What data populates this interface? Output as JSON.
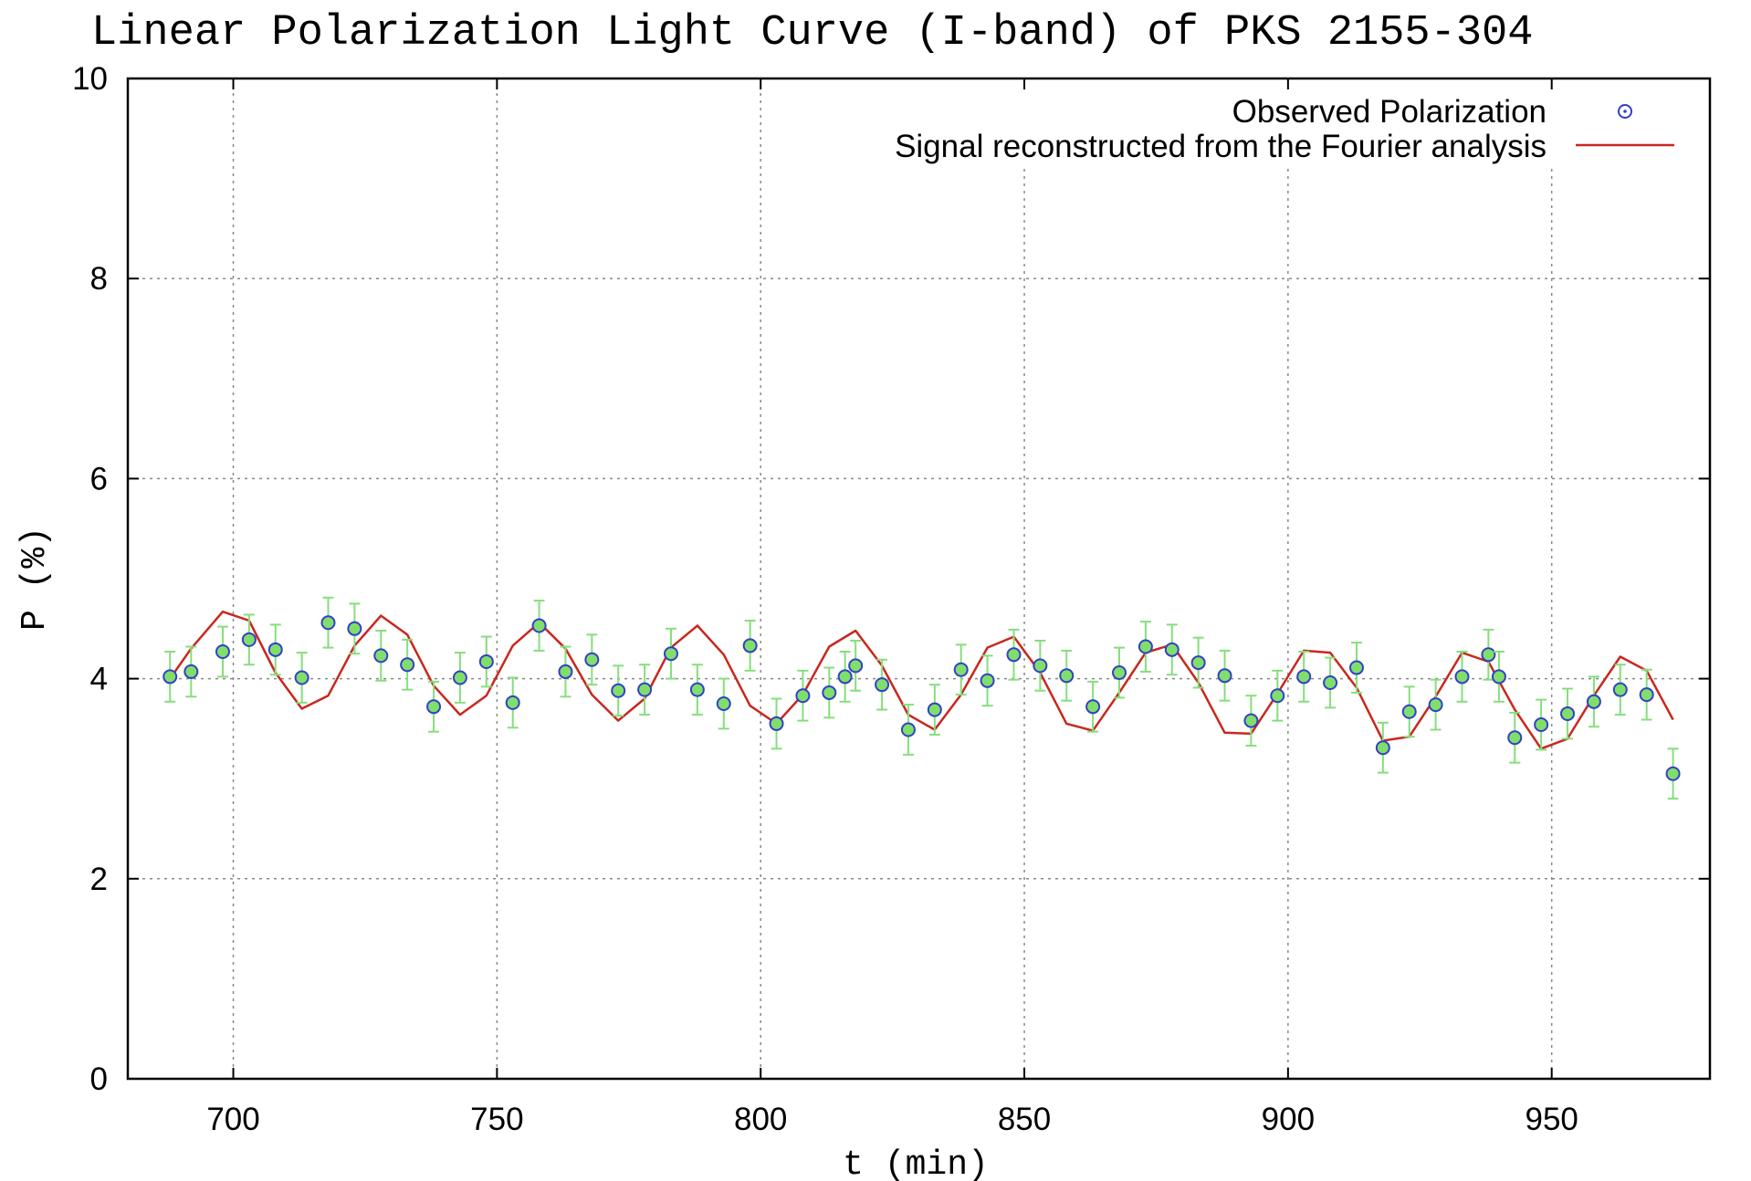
{
  "chart_data": {
    "type": "scatter",
    "title": "Linear Polarization Light Curve (I-band) of PKS 2155-304",
    "xlabel": "t (min)",
    "ylabel": "P (%)",
    "xlim": [
      680,
      980
    ],
    "ylim": [
      0,
      10
    ],
    "x_ticks": [
      700,
      750,
      800,
      850,
      900,
      950
    ],
    "y_ticks": [
      0,
      2,
      4,
      6,
      8,
      10
    ],
    "grid": true,
    "legend_position": "top-right",
    "colors": {
      "observed_marker": "#3340c8",
      "observed_fill": "#7fdf6a",
      "error_bar": "#86de7c",
      "reconstructed_line": "#c8281e",
      "grid": "#888888",
      "axes": "#000000"
    },
    "series": [
      {
        "name": "Observed Polarization",
        "type": "scatter",
        "x": [
          688,
          692,
          698,
          703,
          708,
          713,
          718,
          723,
          728,
          733,
          738,
          743,
          748,
          753,
          758,
          763,
          768,
          773,
          778,
          783,
          788,
          793,
          798,
          803,
          808,
          813,
          816,
          818,
          823,
          828,
          833,
          838,
          843,
          848,
          853,
          858,
          863,
          868,
          873,
          878,
          883,
          888,
          893,
          898,
          903,
          908,
          913,
          918,
          923,
          928,
          933,
          938,
          940,
          943,
          948,
          953,
          958,
          963,
          968,
          973
        ],
        "y": [
          4.02,
          4.07,
          4.27,
          4.39,
          4.29,
          4.01,
          4.56,
          4.5,
          4.23,
          4.14,
          3.72,
          4.01,
          4.17,
          3.76,
          4.53,
          4.07,
          4.19,
          3.88,
          3.89,
          4.25,
          3.89,
          3.75,
          4.33,
          3.55,
          3.83,
          3.86,
          4.02,
          4.13,
          3.94,
          3.49,
          3.69,
          4.09,
          3.98,
          4.24,
          4.13,
          4.03,
          3.72,
          4.06,
          4.32,
          4.29,
          4.16,
          4.03,
          3.58,
          3.83,
          4.02,
          3.96,
          4.11,
          3.31,
          3.67,
          3.74,
          4.02,
          4.24,
          4.02,
          3.41,
          3.54,
          3.65,
          3.77,
          3.89,
          3.84,
          3.05
        ],
        "error": [
          0.25,
          0.25,
          0.25,
          0.25,
          0.25,
          0.25,
          0.25,
          0.25,
          0.25,
          0.25,
          0.25,
          0.25,
          0.25,
          0.25,
          0.25,
          0.25,
          0.25,
          0.25,
          0.25,
          0.25,
          0.25,
          0.25,
          0.25,
          0.25,
          0.25,
          0.25,
          0.25,
          0.25,
          0.25,
          0.25,
          0.25,
          0.25,
          0.25,
          0.25,
          0.25,
          0.25,
          0.25,
          0.25,
          0.25,
          0.25,
          0.25,
          0.25,
          0.25,
          0.25,
          0.25,
          0.25,
          0.25,
          0.25,
          0.25,
          0.25,
          0.25,
          0.25,
          0.25,
          0.25,
          0.25,
          0.25,
          0.25,
          0.25,
          0.25,
          0.25
        ]
      },
      {
        "name": "Signal reconstructed from the Fourier analysis",
        "type": "line",
        "x": [
          688,
          692,
          698,
          703,
          708,
          713,
          718,
          723,
          728,
          733,
          738,
          743,
          748,
          753,
          758,
          763,
          768,
          773,
          778,
          783,
          788,
          793,
          798,
          803,
          808,
          813,
          818,
          823,
          828,
          833,
          838,
          843,
          848,
          853,
          858,
          863,
          868,
          873,
          878,
          883,
          888,
          893,
          898,
          903,
          908,
          913,
          918,
          923,
          928,
          933,
          938,
          943,
          948,
          953,
          958,
          963,
          968,
          973
        ],
        "y": [
          4.0,
          4.3,
          4.67,
          4.58,
          4.06,
          3.7,
          3.83,
          4.33,
          4.63,
          4.44,
          3.93,
          3.64,
          3.83,
          4.33,
          4.56,
          4.3,
          3.84,
          3.58,
          3.8,
          4.31,
          4.53,
          4.24,
          3.73,
          3.55,
          3.84,
          4.32,
          4.48,
          4.13,
          3.64,
          3.49,
          3.84,
          4.31,
          4.42,
          4.06,
          3.55,
          3.48,
          3.86,
          4.26,
          4.34,
          3.96,
          3.46,
          3.45,
          3.85,
          4.28,
          4.26,
          3.91,
          3.38,
          3.42,
          3.82,
          4.26,
          4.17,
          3.69,
          3.3,
          3.4,
          3.83,
          4.22,
          4.08,
          3.59
        ]
      }
    ]
  }
}
